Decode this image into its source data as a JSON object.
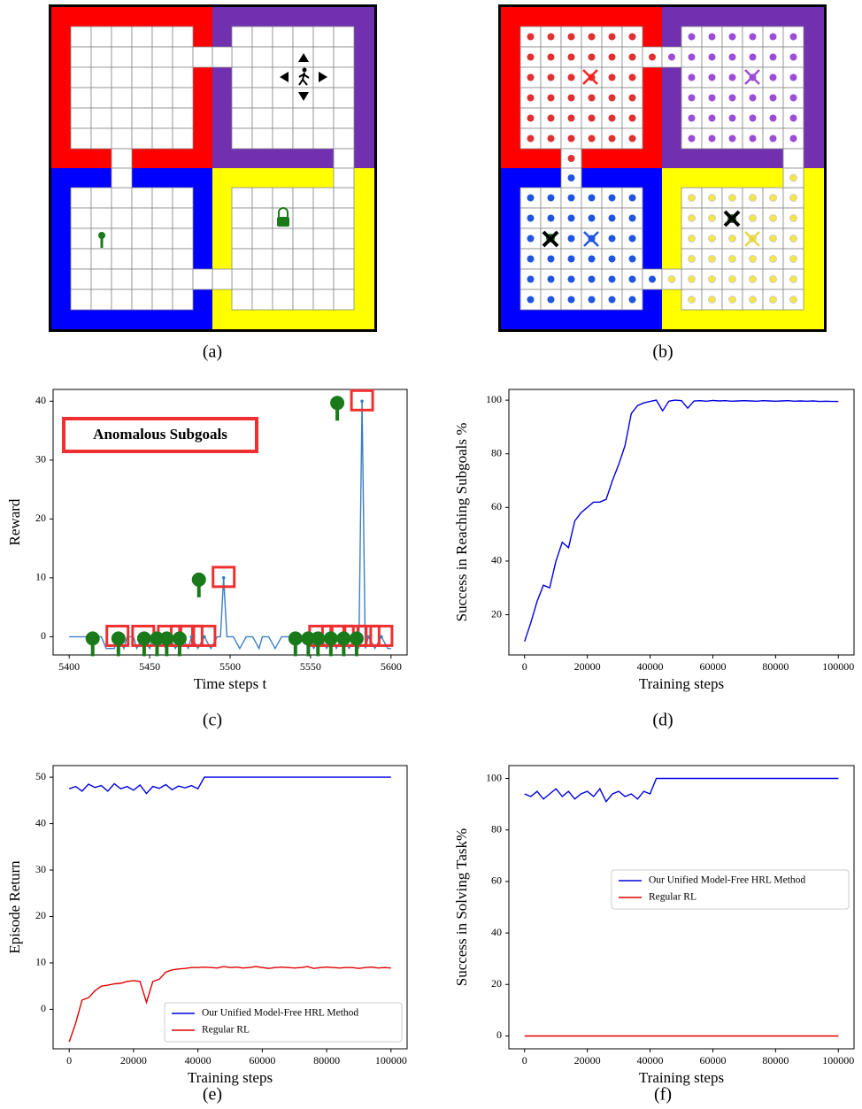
{
  "captions": [
    "(a)",
    "(b)",
    "(c)",
    "(d)",
    "(e)",
    "(f)"
  ],
  "chart_data": [
    {
      "type": "line",
      "xlabel": "Time steps t",
      "ylabel": "Reward",
      "annotation": "Anomalous Subgoals",
      "color": "#3a7ebf",
      "xlim": [
        5390,
        5610
      ],
      "ylim": [
        -3.1,
        42
      ],
      "xticks": [
        5400,
        5450,
        5500,
        5550,
        5600
      ],
      "yticks": [
        0,
        10,
        20,
        30,
        40
      ],
      "x": [
        5400,
        5410,
        5420,
        5423,
        5428,
        5430,
        5434,
        5436,
        5440,
        5442,
        5446,
        5450,
        5452,
        5456,
        5460,
        5462,
        5466,
        5470,
        5474,
        5476,
        5480,
        5484,
        5488,
        5492,
        5494,
        5496,
        5498,
        5502,
        5506,
        5510,
        5514,
        5518,
        5520,
        5524,
        5528,
        5532,
        5536,
        5540,
        5544,
        5548,
        5552,
        5556,
        5560,
        5564,
        5566,
        5570,
        5574,
        5578,
        5580,
        5582,
        5584,
        5586,
        5590,
        5594,
        5598,
        5600
      ],
      "values": [
        0,
        0,
        0,
        -2,
        -2,
        0,
        -2,
        0,
        0,
        -2,
        0,
        -2,
        0,
        0,
        -2,
        0,
        -2,
        0,
        -2,
        0,
        -2,
        0,
        -2,
        0,
        0,
        10,
        0,
        0,
        -2,
        0,
        0,
        -2,
        0,
        0,
        -2,
        0,
        0,
        0,
        0,
        0,
        -2,
        0,
        -2,
        0,
        -2,
        0,
        -2,
        0,
        -2,
        40,
        -2,
        0,
        -2,
        0,
        -2,
        -2
      ]
    },
    {
      "type": "line",
      "xlabel": "Training steps",
      "ylabel": "Success in Reaching Subgoals %",
      "color": "#0000e0",
      "xlim": [
        -5000,
        105000
      ],
      "ylim": [
        5,
        104
      ],
      "xticks": [
        0,
        20000,
        40000,
        60000,
        80000,
        100000
      ],
      "yticks": [
        20,
        40,
        60,
        80,
        100
      ],
      "x": [
        0,
        2000,
        4000,
        6000,
        8000,
        10000,
        12000,
        14000,
        16000,
        18000,
        20000,
        22000,
        24000,
        26000,
        28000,
        30000,
        32000,
        34000,
        36000,
        38000,
        40000,
        42000,
        44000,
        46000,
        48000,
        50000,
        52000,
        54000,
        56000,
        58000,
        60000,
        62000,
        64000,
        66000,
        68000,
        70000,
        72000,
        74000,
        76000,
        78000,
        80000,
        82000,
        84000,
        86000,
        88000,
        90000,
        92000,
        94000,
        96000,
        98000,
        100000
      ],
      "values": [
        10,
        17,
        25,
        31,
        30,
        40,
        47,
        45,
        55,
        58,
        60,
        62,
        62,
        63,
        70,
        76,
        83,
        95,
        98,
        99,
        99.5,
        100,
        96,
        99.6,
        100,
        99.8,
        97,
        99.7,
        99.8,
        99.6,
        99.9,
        99.7,
        99.8,
        99.6,
        99.7,
        99.8,
        99.7,
        99.6,
        99.8,
        99.7,
        99.6,
        99.7,
        99.8,
        99.6,
        99.7,
        99.6,
        99.7,
        99.5,
        99.6,
        99.5,
        99.5
      ]
    },
    {
      "type": "line",
      "xlabel": "Training steps",
      "ylabel": "Episode Return",
      "legend": "lower right",
      "xlim": [
        -5000,
        105000
      ],
      "ylim": [
        -8.5,
        52.5
      ],
      "xticks": [
        0,
        20000,
        40000,
        60000,
        80000,
        100000
      ],
      "yticks": [
        0,
        10,
        20,
        30,
        40,
        50
      ],
      "x": [
        0,
        2000,
        4000,
        6000,
        8000,
        10000,
        12000,
        14000,
        16000,
        18000,
        20000,
        22000,
        24000,
        26000,
        28000,
        30000,
        32000,
        34000,
        36000,
        38000,
        40000,
        42000,
        44000,
        46000,
        48000,
        50000,
        52000,
        54000,
        56000,
        58000,
        60000,
        62000,
        64000,
        66000,
        68000,
        70000,
        72000,
        74000,
        76000,
        78000,
        80000,
        82000,
        84000,
        86000,
        88000,
        90000,
        92000,
        94000,
        96000,
        98000,
        100000
      ],
      "series": [
        {
          "name": "Our Unified Model-Free HRL Method",
          "color": "#0000e0",
          "values": [
            47.5,
            48,
            47,
            48.5,
            47.8,
            48.2,
            47,
            48.6,
            47.5,
            48,
            47.2,
            48.3,
            46.5,
            48,
            47.6,
            48.4,
            47.3,
            48.1,
            47.7,
            48.2,
            47.5,
            50,
            50,
            50,
            50,
            50,
            50,
            50,
            50,
            50,
            50,
            50,
            50,
            50,
            50,
            50,
            50,
            50,
            50,
            50,
            50,
            50,
            50,
            50,
            50,
            50,
            50,
            50,
            50,
            50,
            50
          ]
        },
        {
          "name": "Regular RL",
          "color": "#e00000",
          "values": [
            -7,
            -3,
            2,
            2.5,
            4,
            5,
            5.2,
            5.5,
            5.6,
            6,
            6.2,
            6,
            1.5,
            6,
            6.5,
            8,
            8.5,
            8.7,
            8.8,
            9,
            9,
            9.1,
            9,
            8.9,
            9.2,
            9,
            9.1,
            8.9,
            9,
            9.2,
            9,
            8.8,
            9,
            9.1,
            9,
            8.9,
            9,
            9.2,
            8.8,
            9,
            9.1,
            9,
            8.9,
            9,
            9,
            8.8,
            9,
            9.1,
            8.9,
            9,
            8.9
          ]
        }
      ]
    },
    {
      "type": "line",
      "xlabel": "Training steps",
      "ylabel": "Success in Solving Task%",
      "legend": "center right",
      "xlim": [
        -5000,
        105000
      ],
      "ylim": [
        -5,
        105
      ],
      "xticks": [
        0,
        20000,
        40000,
        60000,
        80000,
        100000
      ],
      "yticks": [
        0,
        20,
        40,
        60,
        80,
        100
      ],
      "x": [
        0,
        2000,
        4000,
        6000,
        8000,
        10000,
        12000,
        14000,
        16000,
        18000,
        20000,
        22000,
        24000,
        26000,
        28000,
        30000,
        32000,
        34000,
        36000,
        38000,
        40000,
        42000,
        44000,
        46000,
        48000,
        50000,
        52000,
        54000,
        56000,
        58000,
        60000,
        62000,
        64000,
        66000,
        68000,
        70000,
        72000,
        74000,
        76000,
        78000,
        80000,
        82000,
        84000,
        86000,
        88000,
        90000,
        92000,
        94000,
        96000,
        98000,
        100000
      ],
      "series": [
        {
          "name": "Our Unified Model-Free HRL Method",
          "color": "#0000e0",
          "values": [
            94,
            93,
            95,
            92,
            94,
            96,
            93,
            95,
            92,
            94,
            95,
            93,
            96,
            91,
            94,
            95,
            93,
            94,
            92,
            95,
            94,
            100,
            100,
            100,
            100,
            100,
            100,
            100,
            100,
            100,
            100,
            100,
            100,
            100,
            100,
            100,
            100,
            100,
            100,
            100,
            100,
            100,
            100,
            100,
            100,
            100,
            100,
            100,
            100,
            100,
            100
          ]
        },
        {
          "name": "Regular RL",
          "color": "#e00000",
          "values": [
            0,
            0,
            0,
            0,
            0,
            0,
            0,
            0,
            0,
            0,
            0,
            0,
            0,
            0,
            0,
            0,
            0,
            0,
            0,
            0,
            0,
            0,
            0,
            0,
            0,
            0,
            0,
            0,
            0,
            0,
            0,
            0,
            0,
            0,
            0,
            0,
            0,
            0,
            0,
            0,
            0,
            0,
            0,
            0,
            0,
            0,
            0,
            0,
            0,
            0,
            0
          ]
        }
      ]
    }
  ]
}
